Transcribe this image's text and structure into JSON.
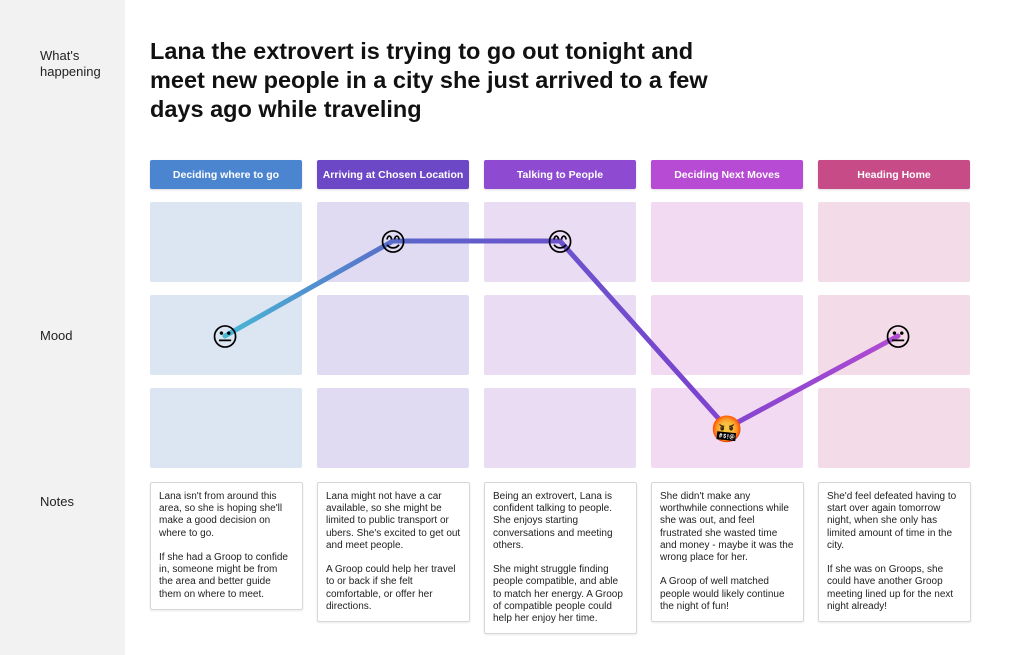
{
  "sidebar": {
    "whats_happening_label": "What's\nhappening",
    "mood_label": "Mood",
    "notes_label": "Notes"
  },
  "title": "Lana the extrovert is trying to go out tonight and meet new people in a city she just arrived to a few days ago while traveling",
  "phases": [
    {
      "label": "Deciding where to go",
      "color": "#4b85cf"
    },
    {
      "label": "Arriving at Chosen Location",
      "color": "#6d48c6"
    },
    {
      "label": "Talking to People",
      "color": "#8e4bd1"
    },
    {
      "label": "Deciding Next Moves",
      "color": "#b84bd3"
    },
    {
      "label": "Heading Home",
      "color": "#c74b86"
    }
  ],
  "cell_colors": [
    "#dce6f3",
    "#e0dbf3",
    "#e9dcf3",
    "#f2dbf2",
    "#f3dce7"
  ],
  "mood_levels": [
    "high",
    "medium",
    "low"
  ],
  "mood_curve": [
    {
      "phase": "Deciding where to go",
      "level": "medium",
      "emoji": "😐"
    },
    {
      "phase": "Arriving at Chosen Location",
      "level": "high",
      "emoji": "😊"
    },
    {
      "phase": "Talking to People",
      "level": "high",
      "emoji": "😊"
    },
    {
      "phase": "Deciding Next Moves",
      "level": "low",
      "emoji": "🤬"
    },
    {
      "phase": "Heading Home",
      "level": "medium",
      "emoji": "😐"
    }
  ],
  "notes": [
    "Lana isn't from around this area, so she is hoping she'll make a good decision on where to go.\n\nIf she had a Groop to confide in, someone might be from the area and better guide them on where to meet.",
    "Lana might not have a car available, so she might be limited to public transport or ubers.  She's excited to get out and meet people.\n\nA Groop could help her travel to or back if she felt comfortable, or offer her directions.",
    "Being an extrovert, Lana is confident talking to people. She enjoys starting conversations and meeting others.\n\nShe might struggle finding people compatible, and able to match her energy.  A Groop of compatible people could help her enjoy her time.",
    "She didn't make any worthwhile connections while she was out, and feel frustrated she wasted time and money - maybe it was the wrong place for her.\n\nA Groop of well matched people would likely continue the night of fun!",
    "She'd feel defeated having to start over again tomorrow night, when she only has limited amount of time in the city.\n\nIf she was on Groops, she could have another Groop meeting lined up for the next night already!"
  ]
}
